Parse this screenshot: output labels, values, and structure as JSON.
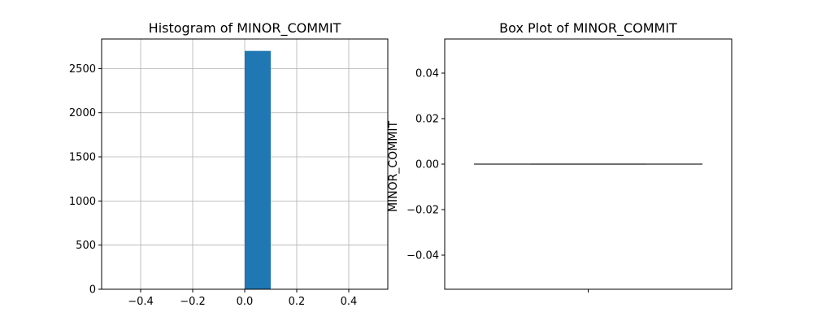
{
  "chart_data": [
    {
      "type": "bar",
      "title": "Histogram of MINOR_COMMIT",
      "xlabel": "",
      "ylabel": "",
      "xlim": [
        -0.55,
        0.55
      ],
      "ylim": [
        0,
        2835
      ],
      "grid": true,
      "x_ticks": [
        -0.4,
        -0.2,
        0.0,
        0.2,
        0.4
      ],
      "x_tick_labels": [
        "−0.4",
        "−0.2",
        "0.0",
        "0.2",
        "0.4"
      ],
      "y_ticks": [
        0,
        500,
        1000,
        1500,
        2000,
        2500
      ],
      "y_tick_labels": [
        "0",
        "500",
        "1000",
        "1500",
        "2000",
        "2500"
      ],
      "bars": [
        {
          "x0": 0.0,
          "x1": 0.1,
          "value": 2700
        }
      ],
      "color": "#1f77b4"
    },
    {
      "type": "box",
      "title": "Box Plot of MINOR_COMMIT",
      "xlabel": "",
      "ylabel": "MINOR_COMMIT",
      "ylim": [
        -0.055,
        0.055
      ],
      "grid": false,
      "y_ticks": [
        -0.04,
        -0.02,
        0.0,
        0.02,
        0.04
      ],
      "y_tick_labels": [
        "−0.04",
        "−0.02",
        "0.00",
        "0.02",
        "0.04"
      ],
      "x_tick_labels": [
        ""
      ],
      "box": {
        "min": 0.0,
        "q1": 0.0,
        "median": 0.0,
        "q3": 0.0,
        "max": 0.0
      },
      "color": "#4c4c4c"
    }
  ]
}
